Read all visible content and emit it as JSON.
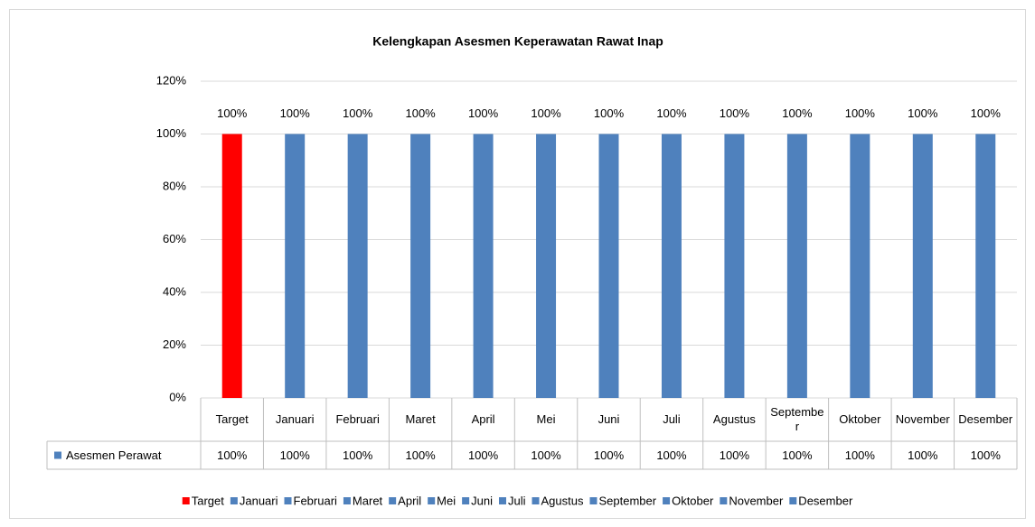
{
  "chart_data": {
    "type": "bar",
    "title": "Kelengkapan Asesmen Keperawatan Rawat Inap",
    "categories": [
      "Target",
      "Januari",
      "Februari",
      "Maret",
      "April",
      "Mei",
      "Juni",
      "Juli",
      "Agustus",
      "September",
      "Oktober",
      "November",
      "Desember"
    ],
    "series": [
      {
        "name": "Asesmen Perawat",
        "color": "#4f81bd",
        "values": [
          100,
          100,
          100,
          100,
          100,
          100,
          100,
          100,
          100,
          100,
          100,
          100,
          100
        ],
        "value_labels": [
          "100%",
          "100%",
          "100%",
          "100%",
          "100%",
          "100%",
          "100%",
          "100%",
          "100%",
          "100%",
          "100%",
          "100%",
          "100%"
        ]
      }
    ],
    "point_colors": [
      "#ff0000",
      "#4f81bd",
      "#4f81bd",
      "#4f81bd",
      "#4f81bd",
      "#4f81bd",
      "#4f81bd",
      "#4f81bd",
      "#4f81bd",
      "#4f81bd",
      "#4f81bd",
      "#4f81bd",
      "#4f81bd"
    ],
    "ylim": [
      0,
      120
    ],
    "yticks": [
      {
        "value": 0,
        "label": "0%"
      },
      {
        "value": 20,
        "label": "20%"
      },
      {
        "value": 40,
        "label": "40%"
      },
      {
        "value": 60,
        "label": "60%"
      },
      {
        "value": 80,
        "label": "80%"
      },
      {
        "value": 100,
        "label": "100%"
      },
      {
        "value": 120,
        "label": "120%"
      }
    ],
    "grid": true,
    "data_table": true,
    "legend": "bottom"
  }
}
